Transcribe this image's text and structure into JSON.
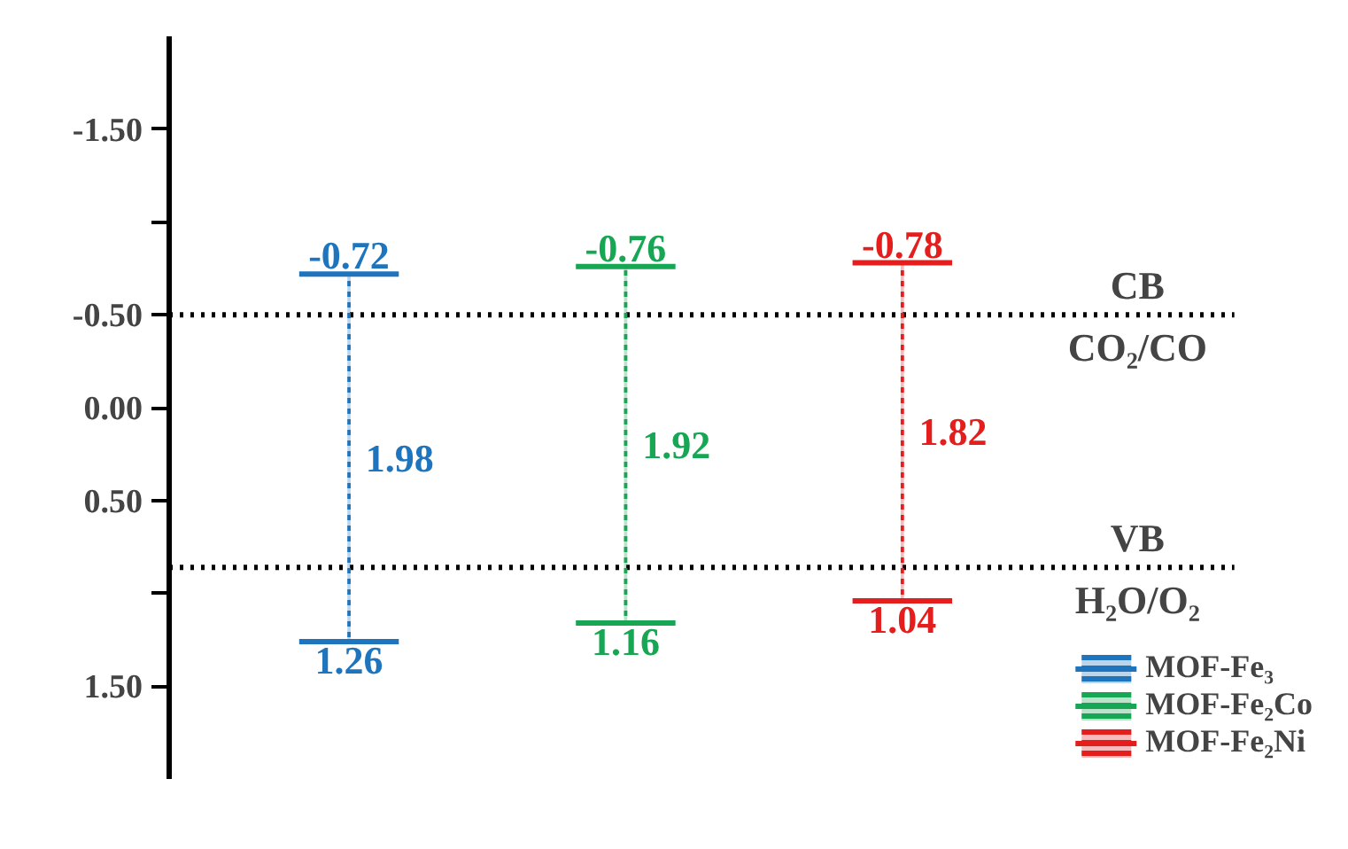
{
  "chart_data": {
    "type": "bar",
    "categories": [
      null,
      null,
      null
    ],
    "series": [
      {
        "name": "MOF-Fe₃",
        "color": "#1f75bd",
        "values": [
          1.98,
          null,
          null
        ],
        "base": [
          -0.72,
          null,
          null
        ]
      },
      {
        "name": "MOF-Fe₂Co",
        "color": "#17a653",
        "values": [
          null,
          1.92,
          null
        ],
        "base": [
          null,
          -0.76,
          null
        ]
      },
      {
        "name": "MOF-Fe₂Ni",
        "color": "#e41d1d",
        "values": [
          null,
          null,
          1.82
        ],
        "base": [
          null,
          null,
          -0.78
        ]
      }
    ],
    "ylim": [
      2.0,
      -2.0
    ],
    "yticks": [
      {
        "value": -1.5,
        "label": "-1.50"
      },
      {
        "value": -1.0,
        "label": null
      },
      {
        "value": -0.5,
        "label": "-0.50"
      },
      {
        "value": 0,
        "label": "0.00"
      },
      {
        "value": 0.5,
        "label": "0.50"
      },
      {
        "value": 1.0,
        "label": null
      },
      {
        "value": 1.5,
        "label": "1.50"
      }
    ],
    "tick_labels": "y",
    "ref_lines": [
      {
        "axis": "y",
        "value": -0.5,
        "label": "CB",
        "color": "#000000",
        "line_style": "dotted"
      },
      {
        "axis": "y",
        "value": 0.86,
        "label": "VB",
        "color": "#000000",
        "line_style": "dotted"
      }
    ],
    "annotations": [
      {
        "text": "-0.72",
        "y": -0.72
      },
      {
        "text": "1.26",
        "y": 1.26
      },
      {
        "text": "-0.76",
        "y": -0.76
      },
      {
        "text": "1.16",
        "y": 1.16
      },
      {
        "text": "-0.78",
        "y": -0.78
      },
      {
        "text": "1.04",
        "y": 1.04
      },
      {
        "text": "CO₂/CO",
        "y": -0.5
      },
      {
        "text": "H₂O/O₂",
        "y": 0.86
      },
      "1.98",
      "1.92",
      "1.82"
    ],
    "grid": false,
    "legend": "bottom right"
  }
}
